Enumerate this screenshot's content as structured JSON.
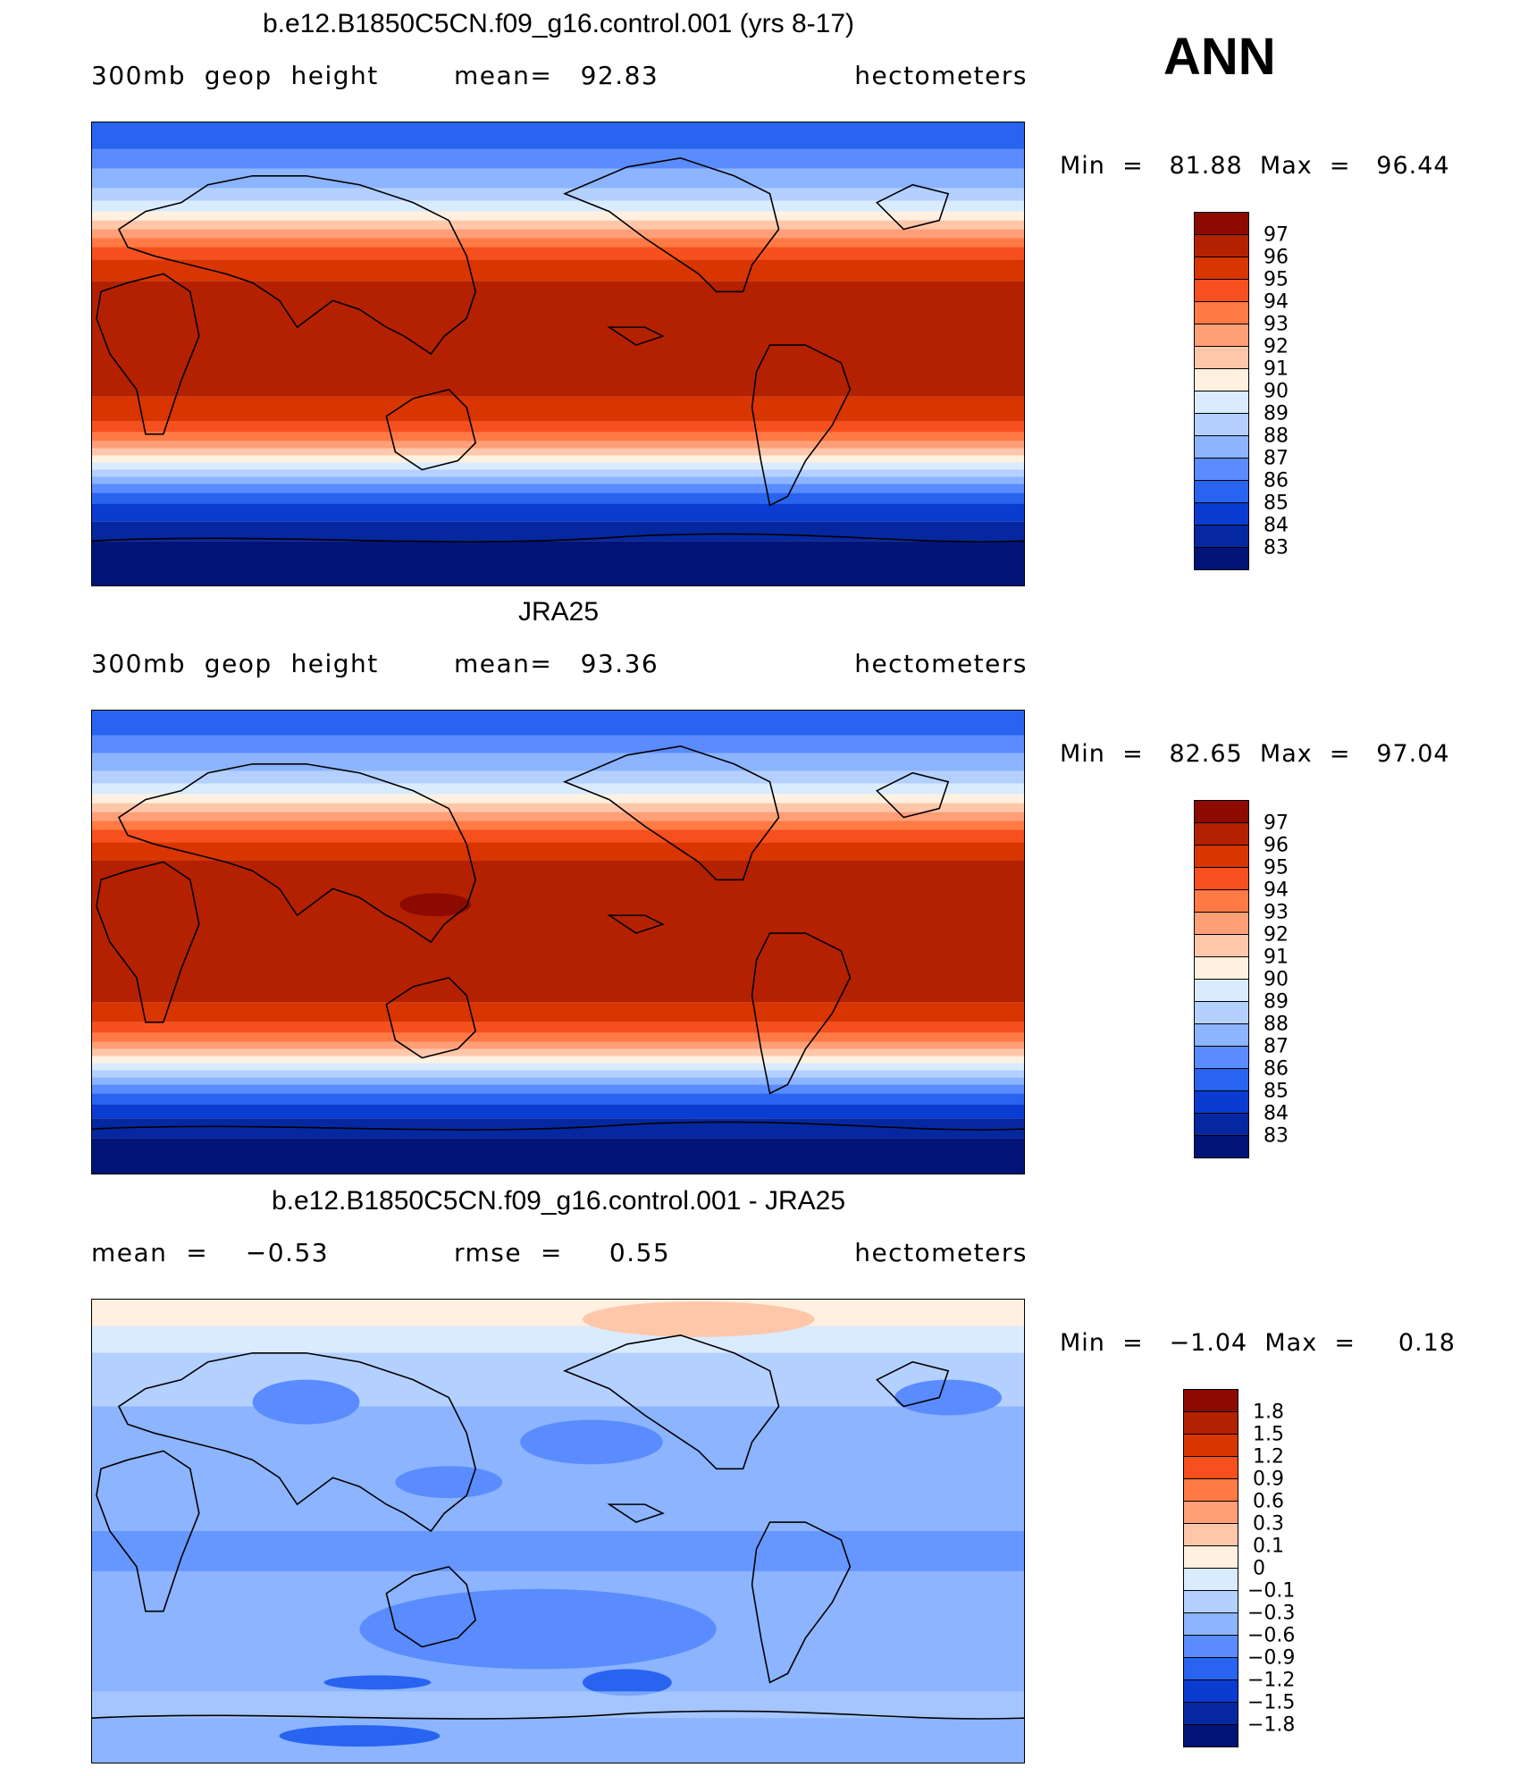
{
  "season_label": "ANN",
  "panels": [
    {
      "id": "model",
      "title": "b.e12.B1850C5CN.f09_g16.control.001 (yrs 8-17)",
      "left_header": "300mb  geop  height",
      "mid_header": "mean=   92.83",
      "right_header": "hectometers",
      "minmax": "Min  =   81.88  Max  =   96.44",
      "colorbar": {
        "labels": [
          "97",
          "96",
          "95",
          "94",
          "93",
          "92",
          "91",
          "90",
          "89",
          "88",
          "87",
          "86",
          "85",
          "84",
          "83"
        ],
        "colors": [
          "#8c0a00",
          "#b42100",
          "#d93500",
          "#f5501d",
          "#ff7a45",
          "#ff9f78",
          "#ffc7aa",
          "#fff0e0",
          "#d9ebff",
          "#b4d0ff",
          "#8cb4ff",
          "#5a8cff",
          "#2864f0",
          "#0a3cd2",
          "#0528a0",
          "#001478"
        ]
      }
    },
    {
      "id": "obs",
      "title": "JRA25",
      "left_header": "300mb  geop  height",
      "mid_header": "mean=   93.36",
      "right_header": "hectometers",
      "minmax": "Min  =   82.65  Max  =   97.04",
      "colorbar": {
        "labels": [
          "97",
          "96",
          "95",
          "94",
          "93",
          "92",
          "91",
          "90",
          "89",
          "88",
          "87",
          "86",
          "85",
          "84",
          "83"
        ],
        "colors": [
          "#8c0a00",
          "#b42100",
          "#d93500",
          "#f5501d",
          "#ff7a45",
          "#ff9f78",
          "#ffc7aa",
          "#fff0e0",
          "#d9ebff",
          "#b4d0ff",
          "#8cb4ff",
          "#5a8cff",
          "#2864f0",
          "#0a3cd2",
          "#0528a0",
          "#001478"
        ]
      }
    },
    {
      "id": "diff",
      "title": "b.e12.B1850C5CN.f09_g16.control.001 - JRA25",
      "left_header": "mean  =    −0.53",
      "mid_header": "rmse  =     0.55",
      "right_header": "hectometers",
      "minmax": "Min  =   −1.04  Max  =     0.18",
      "colorbar": {
        "labels": [
          "1.8",
          "1.5",
          "1.2",
          "0.9",
          "0.6",
          "0.3",
          "0.1",
          "0",
          "−0.1",
          "−0.3",
          "−0.6",
          "−0.9",
          "−1.2",
          "−1.5",
          "−1.8"
        ],
        "colors": [
          "#8c0a00",
          "#b42100",
          "#d93500",
          "#f5501d",
          "#ff7a45",
          "#ff9f78",
          "#ffc7aa",
          "#fff0e0",
          "#d9ebff",
          "#b4d0ff",
          "#8cb4ff",
          "#5a8cff",
          "#2864f0",
          "#0a3cd2",
          "#0528a0",
          "#001478"
        ]
      }
    }
  ]
}
